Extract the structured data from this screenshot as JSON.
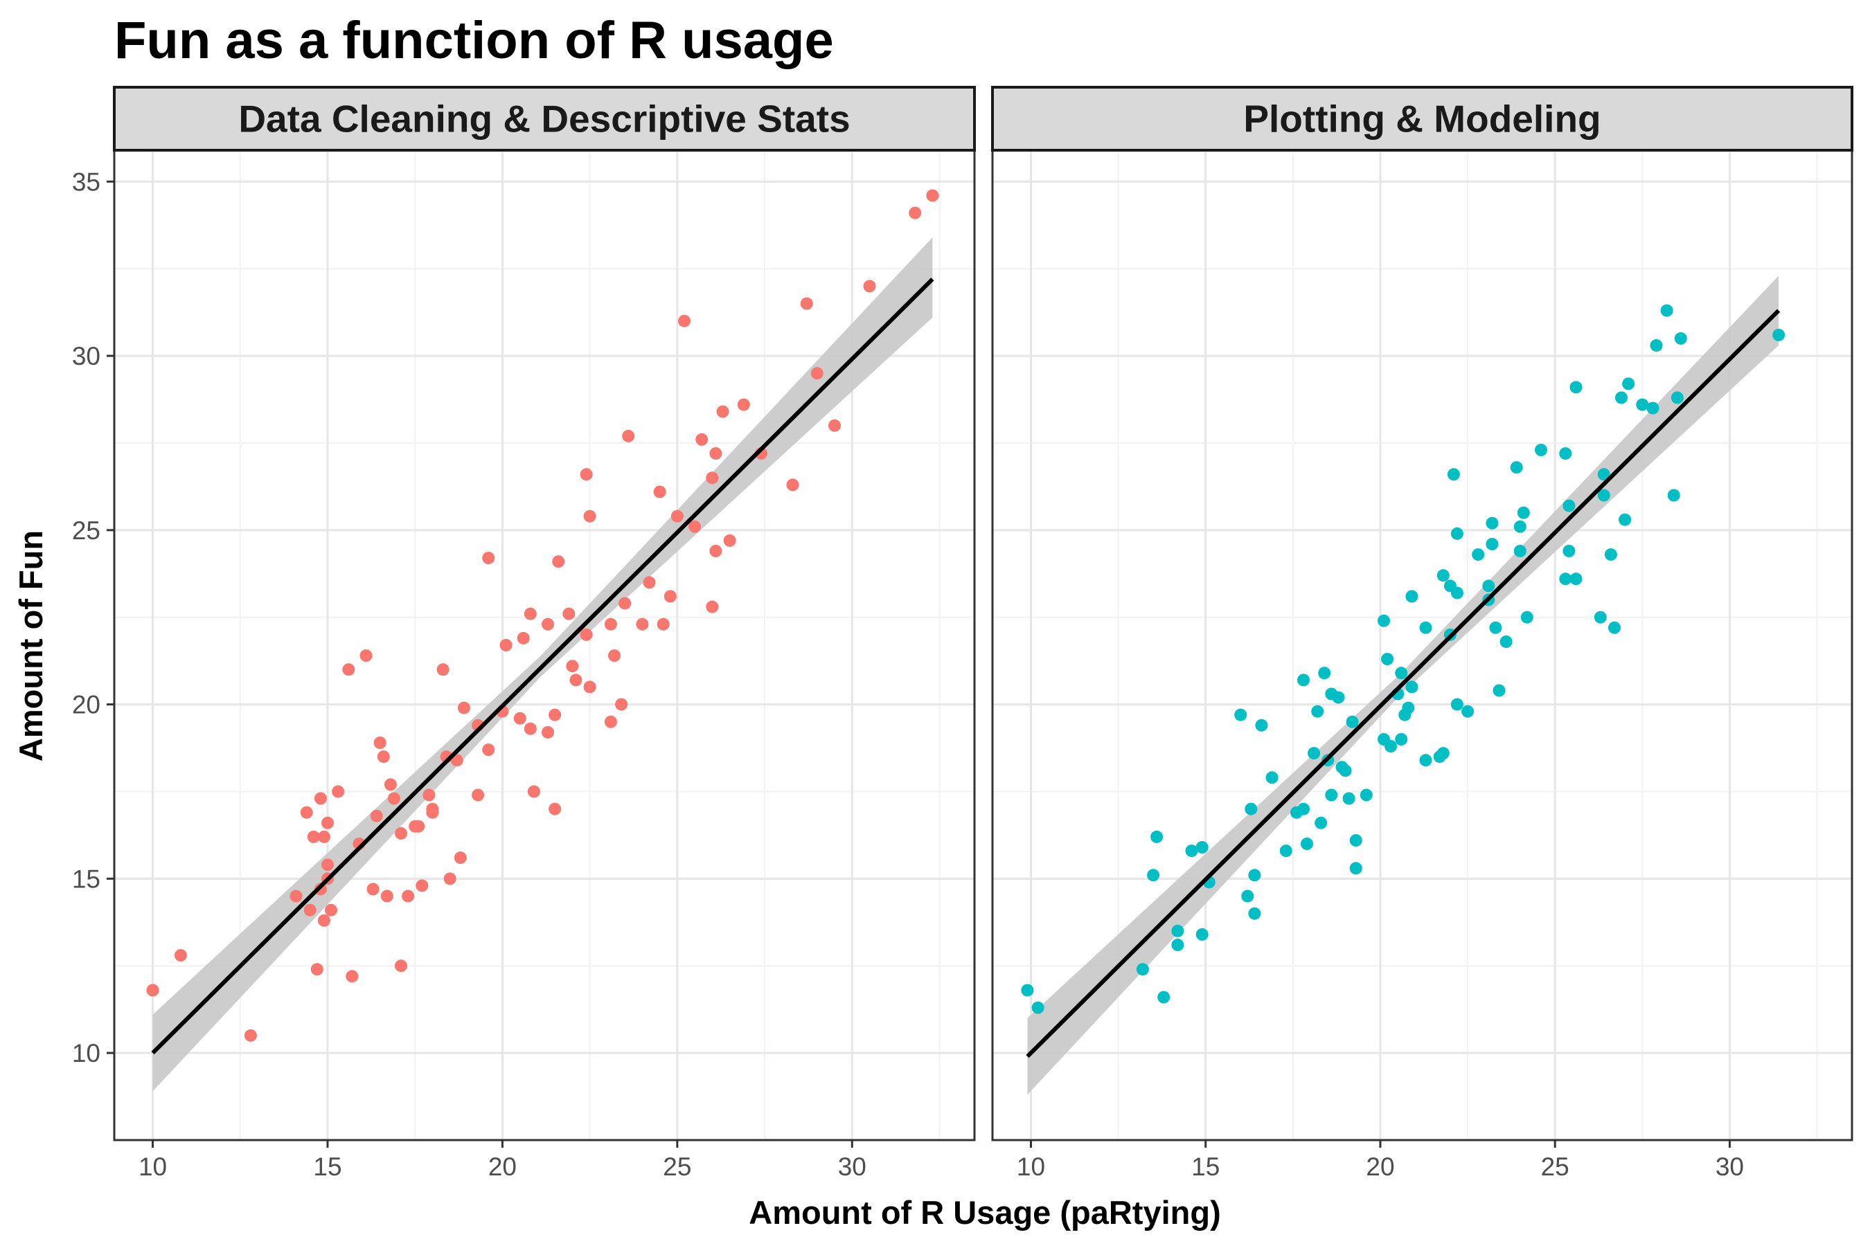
{
  "chart_data": {
    "type": "scatter",
    "title": "Fun as a function of R usage",
    "xlabel": "Amount of R Usage (paRtying)",
    "ylabel": "Amount of Fun",
    "xlim": [
      8.9,
      33.5
    ],
    "ylim": [
      7.5,
      35.9
    ],
    "x_ticks": [
      10,
      15,
      20,
      25,
      30
    ],
    "y_ticks": [
      10,
      15,
      20,
      25,
      30,
      35
    ],
    "grid": true,
    "colors": {
      "panel1_points": "#f8766d",
      "panel2_points": "#00bfc4",
      "fit_line": "#000000",
      "ci_band": "#c8c8c8",
      "strip_fill": "#d9d9d9",
      "grid_major": "#e6e6e6",
      "grid_minor": "#f2f2f2"
    },
    "facets": [
      {
        "label": "Data Cleaning & Descriptive Stats",
        "fit": {
          "x": [
            10.0,
            32.3
          ],
          "y": [
            10.0,
            32.2
          ]
        },
        "ci": {
          "x": [
            10.0,
            21.1,
            32.3
          ],
          "lower": [
            8.9,
            20.8,
            31.1
          ],
          "upper": [
            11.1,
            21.4,
            33.4
          ]
        },
        "points": [
          [
            10.0,
            11.8
          ],
          [
            10.8,
            12.8
          ],
          [
            12.8,
            10.5
          ],
          [
            14.1,
            14.5
          ],
          [
            14.4,
            16.9
          ],
          [
            14.5,
            14.1
          ],
          [
            14.6,
            16.2
          ],
          [
            14.7,
            12.4
          ],
          [
            14.8,
            14.7
          ],
          [
            14.8,
            17.3
          ],
          [
            14.9,
            13.8
          ],
          [
            14.9,
            16.2
          ],
          [
            15.0,
            15.4
          ],
          [
            15.0,
            16.6
          ],
          [
            15.0,
            15.0
          ],
          [
            15.1,
            14.1
          ],
          [
            15.3,
            17.5
          ],
          [
            15.6,
            21.0
          ],
          [
            15.7,
            12.2
          ],
          [
            15.9,
            16.0
          ],
          [
            16.1,
            21.4
          ],
          [
            16.3,
            14.7
          ],
          [
            16.4,
            16.8
          ],
          [
            16.5,
            18.9
          ],
          [
            16.6,
            18.5
          ],
          [
            16.7,
            14.5
          ],
          [
            16.8,
            17.7
          ],
          [
            16.9,
            17.3
          ],
          [
            17.1,
            12.5
          ],
          [
            17.1,
            16.3
          ],
          [
            17.3,
            14.5
          ],
          [
            17.5,
            16.5
          ],
          [
            17.6,
            16.5
          ],
          [
            17.7,
            14.8
          ],
          [
            17.9,
            17.4
          ],
          [
            18.0,
            17.0
          ],
          [
            18.0,
            16.9
          ],
          [
            18.3,
            21.0
          ],
          [
            18.4,
            18.5
          ],
          [
            18.5,
            15.0
          ],
          [
            18.7,
            18.4
          ],
          [
            18.8,
            15.6
          ],
          [
            18.9,
            19.9
          ],
          [
            19.3,
            19.4
          ],
          [
            19.3,
            17.4
          ],
          [
            19.6,
            18.7
          ],
          [
            19.6,
            24.2
          ],
          [
            20.0,
            19.8
          ],
          [
            20.1,
            21.7
          ],
          [
            20.5,
            19.6
          ],
          [
            20.6,
            21.9
          ],
          [
            20.8,
            22.6
          ],
          [
            20.8,
            19.3
          ],
          [
            20.9,
            17.5
          ],
          [
            21.3,
            22.3
          ],
          [
            21.3,
            19.2
          ],
          [
            21.5,
            19.7
          ],
          [
            21.5,
            17.0
          ],
          [
            21.6,
            24.1
          ],
          [
            21.9,
            22.6
          ],
          [
            22.0,
            21.1
          ],
          [
            22.1,
            20.7
          ],
          [
            22.4,
            22.0
          ],
          [
            22.4,
            26.6
          ],
          [
            22.5,
            25.4
          ],
          [
            22.5,
            20.5
          ],
          [
            23.1,
            19.5
          ],
          [
            23.1,
            22.3
          ],
          [
            23.2,
            21.4
          ],
          [
            23.4,
            20.0
          ],
          [
            23.5,
            22.9
          ],
          [
            23.6,
            27.7
          ],
          [
            24.0,
            22.3
          ],
          [
            24.2,
            23.5
          ],
          [
            24.5,
            26.1
          ],
          [
            24.6,
            22.3
          ],
          [
            24.8,
            23.1
          ],
          [
            25.0,
            25.4
          ],
          [
            25.2,
            31.0
          ],
          [
            25.5,
            25.1
          ],
          [
            25.7,
            27.6
          ],
          [
            26.0,
            26.5
          ],
          [
            26.0,
            22.8
          ],
          [
            26.1,
            24.4
          ],
          [
            26.1,
            27.2
          ],
          [
            26.3,
            28.4
          ],
          [
            26.5,
            24.7
          ],
          [
            26.9,
            28.6
          ],
          [
            27.4,
            27.2
          ],
          [
            28.3,
            26.3
          ],
          [
            28.7,
            31.5
          ],
          [
            29.0,
            29.5
          ],
          [
            29.5,
            28.0
          ],
          [
            30.5,
            32.0
          ],
          [
            31.8,
            34.1
          ],
          [
            32.3,
            34.6
          ]
        ]
      },
      {
        "label": "Plotting & Modeling",
        "fit": {
          "x": [
            9.9,
            31.4
          ],
          "y": [
            9.9,
            31.3
          ]
        },
        "ci": {
          "x": [
            9.9,
            20.6,
            31.4
          ],
          "lower": [
            8.8,
            20.3,
            30.3
          ],
          "upper": [
            11.0,
            20.9,
            32.3
          ]
        },
        "points": [
          [
            9.9,
            11.8
          ],
          [
            10.2,
            11.3
          ],
          [
            13.2,
            12.4
          ],
          [
            13.5,
            15.1
          ],
          [
            13.6,
            16.2
          ],
          [
            13.8,
            11.6
          ],
          [
            14.2,
            13.5
          ],
          [
            14.2,
            13.1
          ],
          [
            14.6,
            15.8
          ],
          [
            14.9,
            15.9
          ],
          [
            14.9,
            13.4
          ],
          [
            15.1,
            14.9
          ],
          [
            16.0,
            19.7
          ],
          [
            16.2,
            14.5
          ],
          [
            16.3,
            17.0
          ],
          [
            16.4,
            15.1
          ],
          [
            16.4,
            14.0
          ],
          [
            16.6,
            19.4
          ],
          [
            16.9,
            17.9
          ],
          [
            17.3,
            15.8
          ],
          [
            17.6,
            16.9
          ],
          [
            17.8,
            17.0
          ],
          [
            17.8,
            20.7
          ],
          [
            17.9,
            16.0
          ],
          [
            18.1,
            18.6
          ],
          [
            18.2,
            19.8
          ],
          [
            18.3,
            16.6
          ],
          [
            18.4,
            20.9
          ],
          [
            18.5,
            18.4
          ],
          [
            18.6,
            20.3
          ],
          [
            18.6,
            17.4
          ],
          [
            18.8,
            20.2
          ],
          [
            18.9,
            18.2
          ],
          [
            19.0,
            18.1
          ],
          [
            19.1,
            17.3
          ],
          [
            19.2,
            19.5
          ],
          [
            19.3,
            15.3
          ],
          [
            19.3,
            16.1
          ],
          [
            19.6,
            17.4
          ],
          [
            20.1,
            22.4
          ],
          [
            20.1,
            19.0
          ],
          [
            20.2,
            21.3
          ],
          [
            20.3,
            18.8
          ],
          [
            20.5,
            20.3
          ],
          [
            20.6,
            19.0
          ],
          [
            20.6,
            20.9
          ],
          [
            20.7,
            19.7
          ],
          [
            20.8,
            19.9
          ],
          [
            20.9,
            20.5
          ],
          [
            20.9,
            23.1
          ],
          [
            21.3,
            18.4
          ],
          [
            21.3,
            22.2
          ],
          [
            21.7,
            18.5
          ],
          [
            21.8,
            18.6
          ],
          [
            21.8,
            23.7
          ],
          [
            22.0,
            22.0
          ],
          [
            22.0,
            23.4
          ],
          [
            22.1,
            26.6
          ],
          [
            22.2,
            23.2
          ],
          [
            22.2,
            24.9
          ],
          [
            22.2,
            20.0
          ],
          [
            22.5,
            19.8
          ],
          [
            22.8,
            24.3
          ],
          [
            23.1,
            23.4
          ],
          [
            23.1,
            23.0
          ],
          [
            23.2,
            24.6
          ],
          [
            23.2,
            25.2
          ],
          [
            23.3,
            22.2
          ],
          [
            23.4,
            20.4
          ],
          [
            23.6,
            21.8
          ],
          [
            23.9,
            26.8
          ],
          [
            24.0,
            25.1
          ],
          [
            24.0,
            24.4
          ],
          [
            24.1,
            25.5
          ],
          [
            24.2,
            22.5
          ],
          [
            24.6,
            27.3
          ],
          [
            25.3,
            23.6
          ],
          [
            25.3,
            27.2
          ],
          [
            25.4,
            24.4
          ],
          [
            25.4,
            25.7
          ],
          [
            25.6,
            29.1
          ],
          [
            25.6,
            23.6
          ],
          [
            26.3,
            22.5
          ],
          [
            26.4,
            26.0
          ],
          [
            26.4,
            26.6
          ],
          [
            26.6,
            24.3
          ],
          [
            26.7,
            22.2
          ],
          [
            26.9,
            28.8
          ],
          [
            27.0,
            25.3
          ],
          [
            27.1,
            29.2
          ],
          [
            27.5,
            28.6
          ],
          [
            27.8,
            28.5
          ],
          [
            27.9,
            30.3
          ],
          [
            28.2,
            31.3
          ],
          [
            28.4,
            26.0
          ],
          [
            28.5,
            28.8
          ],
          [
            28.6,
            30.5
          ],
          [
            31.4,
            30.6
          ]
        ]
      }
    ]
  }
}
